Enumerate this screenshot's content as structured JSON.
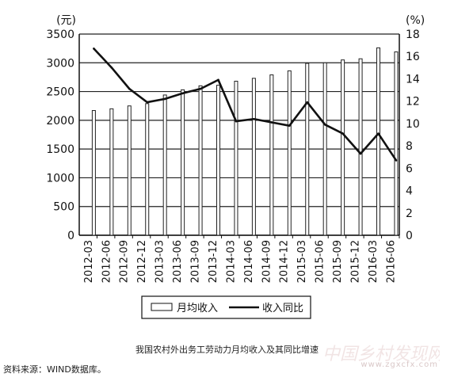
{
  "chart_data": {
    "type": "bar",
    "categories": [
      "2012-03",
      "2012-06",
      "2012-09",
      "2012-12",
      "2013-03",
      "2013-06",
      "2013-09",
      "2013-12",
      "2014-03",
      "2014-06",
      "2014-09",
      "2014-12",
      "2015-03",
      "2015-06",
      "2015-09",
      "2015-12",
      "2016-03",
      "2016-06"
    ],
    "series": [
      {
        "name": "月均收入",
        "kind": "bar",
        "axis": "left",
        "values": [
          2170,
          2200,
          2250,
          2290,
          2440,
          2530,
          2600,
          2610,
          2680,
          2730,
          2790,
          2860,
          2990,
          3000,
          3050,
          3070,
          3260,
          3190
        ]
      },
      {
        "name": "收入同比",
        "kind": "line",
        "axis": "right",
        "values": [
          16.7,
          15.0,
          13.1,
          11.9,
          12.2,
          12.7,
          13.1,
          13.9,
          10.2,
          10.4,
          10.1,
          9.8,
          11.9,
          9.9,
          9.1,
          7.3,
          9.1,
          6.7
        ]
      }
    ],
    "left_axis": {
      "unit": "(元)",
      "ylim": [
        0,
        3500
      ],
      "ticks": [
        0,
        500,
        1000,
        1500,
        2000,
        2500,
        3000,
        3500
      ]
    },
    "right_axis": {
      "unit": "(%)",
      "ylim": [
        0,
        18
      ],
      "ticks": [
        0,
        2,
        4,
        6,
        8,
        10,
        12,
        14,
        16,
        18
      ]
    },
    "grid": "horizontal",
    "legend_position": "bottom-center"
  },
  "caption": "我国农村外出务工劳动力月均收入及其同比增速",
  "source": "资料来源：WIND数据库。",
  "watermark": {
    "title": "中国乡村发现网",
    "url": "www.zgxcfx.com"
  },
  "colors": {
    "line": "#111111",
    "bar_fill": "#ffffff",
    "bar_stroke": "#222222",
    "grid": "#222222"
  }
}
